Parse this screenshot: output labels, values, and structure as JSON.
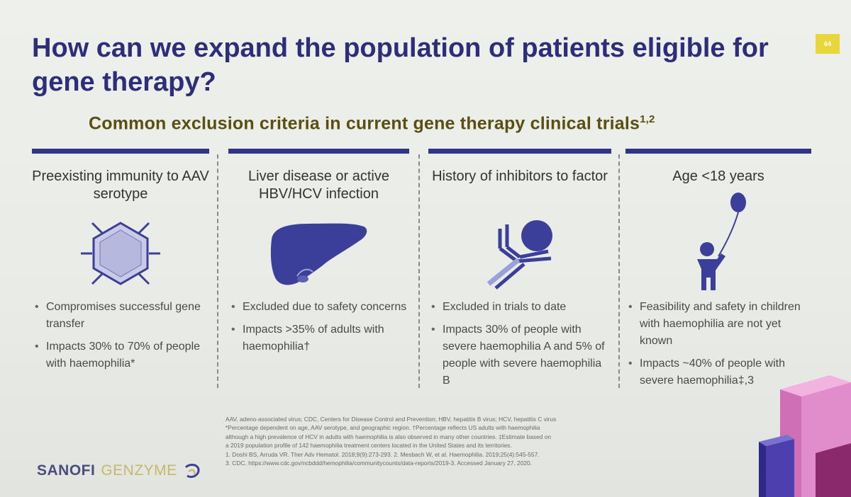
{
  "page_badge": "64",
  "title": "How can we expand the population of patients eligible for gene therapy?",
  "subtitle": {
    "text": "Common exclusion criteria in current gene therapy clinical trials",
    "refs": "1,2"
  },
  "columns": [
    {
      "title": "Preexisting immunity to AAV serotype",
      "icon": "hexagon-virus-icon",
      "bullets": [
        "Compromises successful gene transfer",
        "Impacts 30% to 70% of people with haemophilia*"
      ]
    },
    {
      "title": "Liver disease or active HBV/HCV infection",
      "icon": "liver-icon",
      "bullets": [
        "Excluded due to safety concerns",
        "Impacts >35% of adults with haemophilia†"
      ]
    },
    {
      "title": "History of inhibitors to factor",
      "icon": "antibody-icon",
      "bullets": [
        "Excluded in trials to date",
        "Impacts 30% of people with severe haemophilia A and 5% of people with severe haemophilia B"
      ]
    },
    {
      "title": "Age <18 years",
      "icon": "child-balloon-icon",
      "bullets": [
        "Feasibility and safety in children with haemophilia are not yet known",
        "Impacts ~40% of people with severe haemophilia‡,3"
      ]
    }
  ],
  "footnotes": [
    "AAV, adeno-associated virus; CDC, Centers for Disease Control and Prevention; HBV, hepatitis B virus; HCV, hepatitis C virus",
    "*Percentage dependent on age, AAV serotype, and geographic region. †Percentage reflects US adults with haemophilia",
    "although a high prevalence of HCV in adults with haemophilia is also observed in many other countries. ‡Estimate based on",
    "a 2019 population profile of 142 haemophilia treatment centers located in the United States and its territories.",
    "1. Doshi BS, Arruda VR. Ther Adv Hematol. 2018;9(9):273-293. 2. Mesbach W, et al. Haemophilia. 2019;25(4):545-557.",
    "3. CDC. https://www.cdc.gov/ncbddd/hemophilia/communitycounts/data-reports/2019-3. Accessed January 27, 2020."
  ],
  "logo": {
    "brand": "SANOFI",
    "division": "GENZYME"
  },
  "colors": {
    "title": "#2d2d7a",
    "subtitle": "#5a4f10",
    "bar": "#2f3488",
    "icon_fill": "#3b3f99",
    "icon_light": "#9aa0d8",
    "badge": "#e8d63a"
  }
}
